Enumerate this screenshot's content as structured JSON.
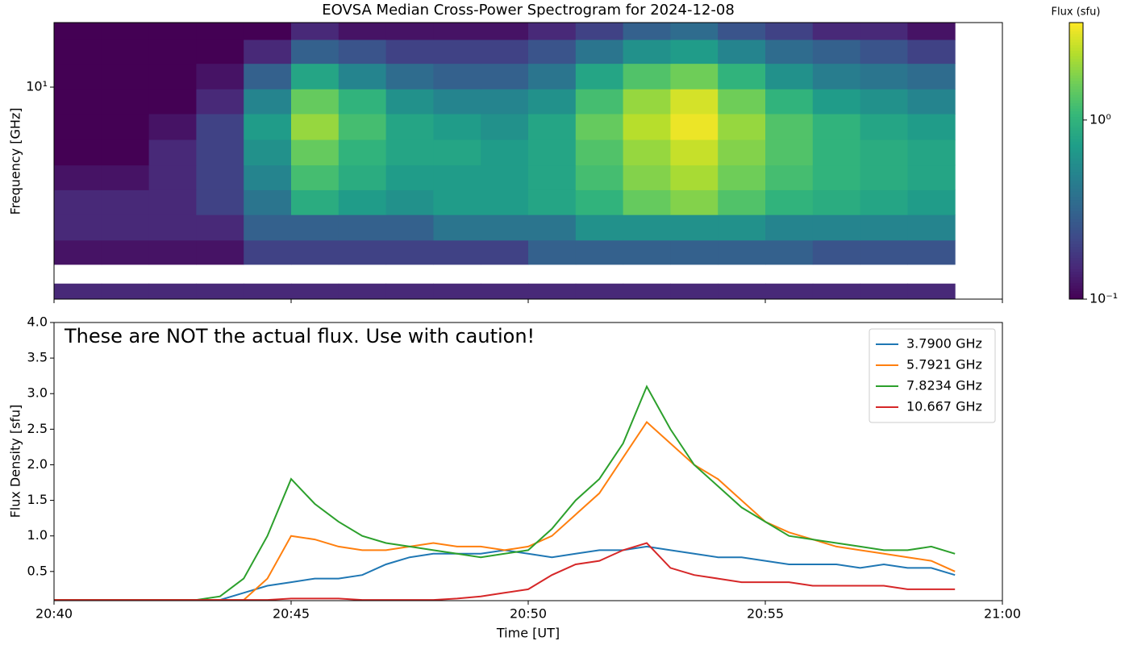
{
  "chart_data": [
    {
      "type": "heatmap",
      "title": "EOVSA Median Cross-Power Spectrogram for 2024-12-08",
      "y_label": "Frequency [GHz]",
      "log_y": true,
      "colormap": "viridis",
      "log_color": true,
      "colorbar_label": "Flux (sfu)",
      "clim": [
        0.1,
        3.5
      ],
      "colorbar_ticks": [
        {
          "value": 0.1,
          "label": "10⁻¹"
        },
        {
          "value": 1,
          "label": "10⁰"
        }
      ],
      "ylim": [
        1.45,
        18
      ],
      "yticks": [
        {
          "value": 10,
          "label": "10¹"
        }
      ],
      "x": [
        0.5,
        1.5,
        2.5,
        3.5,
        4.5,
        5.5,
        6.5,
        7.5,
        8.5,
        9.5,
        10.5,
        11.5,
        12.5,
        13.5,
        14.5,
        15.5,
        16.5,
        17.5,
        18.5
      ],
      "y": [
        1.55,
        1.8,
        2.2,
        2.8,
        3.5,
        4.4,
        5.5,
        7.0,
        8.8,
        11,
        14,
        17
      ],
      "z": [
        [
          0.15,
          0.15,
          0.15,
          0.15,
          0.15,
          0.15,
          0.15,
          0.15,
          0.15,
          0.15,
          0.15,
          0.15,
          0.15,
          0.15,
          0.15,
          0.15,
          0.15,
          0.15,
          0.15
        ],
        [
          null,
          null,
          null,
          null,
          null,
          null,
          null,
          null,
          null,
          null,
          null,
          null,
          null,
          null,
          null,
          null,
          null,
          null,
          null
        ],
        [
          0.12,
          0.12,
          0.12,
          0.12,
          0.2,
          0.2,
          0.2,
          0.2,
          0.2,
          0.2,
          0.3,
          0.3,
          0.3,
          0.3,
          0.3,
          0.3,
          0.25,
          0.25,
          0.25
        ],
        [
          0.15,
          0.15,
          0.15,
          0.15,
          0.3,
          0.3,
          0.3,
          0.3,
          0.4,
          0.4,
          0.4,
          0.6,
          0.6,
          0.6,
          0.6,
          0.5,
          0.5,
          0.5,
          0.5
        ],
        [
          0.15,
          0.15,
          0.15,
          0.2,
          0.4,
          0.9,
          0.7,
          0.6,
          0.7,
          0.7,
          0.8,
          1.0,
          1.5,
          1.8,
          1.3,
          1.0,
          0.9,
          0.8,
          0.7
        ],
        [
          0.12,
          0.12,
          0.15,
          0.2,
          0.5,
          1.2,
          0.9,
          0.7,
          0.7,
          0.7,
          0.8,
          1.2,
          1.8,
          2.2,
          1.6,
          1.2,
          1.0,
          0.9,
          0.8
        ],
        [
          0.1,
          0.1,
          0.15,
          0.2,
          0.6,
          1.5,
          1.0,
          0.8,
          0.8,
          0.7,
          0.8,
          1.3,
          2.0,
          2.6,
          1.8,
          1.3,
          1.0,
          0.9,
          0.8
        ],
        [
          0.1,
          0.1,
          0.12,
          0.2,
          0.7,
          2.0,
          1.2,
          0.8,
          0.7,
          0.6,
          0.8,
          1.5,
          2.4,
          3.2,
          2.0,
          1.3,
          1.0,
          0.8,
          0.7
        ],
        [
          0.1,
          0.1,
          0.1,
          0.15,
          0.5,
          1.5,
          1.0,
          0.6,
          0.5,
          0.5,
          0.6,
          1.2,
          2.0,
          2.8,
          1.6,
          1.0,
          0.7,
          0.6,
          0.5
        ],
        [
          0.1,
          0.1,
          0.1,
          0.12,
          0.3,
          0.8,
          0.5,
          0.35,
          0.3,
          0.3,
          0.4,
          0.8,
          1.3,
          1.6,
          1.0,
          0.6,
          0.45,
          0.4,
          0.35
        ],
        [
          0.1,
          0.1,
          0.1,
          0.1,
          0.15,
          0.3,
          0.25,
          0.2,
          0.2,
          0.2,
          0.25,
          0.4,
          0.6,
          0.7,
          0.5,
          0.35,
          0.3,
          0.25,
          0.2
        ],
        [
          0.1,
          0.1,
          0.1,
          0.1,
          0.1,
          0.15,
          0.12,
          0.12,
          0.12,
          0.12,
          0.15,
          0.2,
          0.3,
          0.35,
          0.25,
          0.2,
          0.15,
          0.15,
          0.12
        ]
      ]
    },
    {
      "type": "line",
      "x_label": "Time [UT]",
      "y_label": "Flux Density [sfu]",
      "annotation": "These are NOT the actual flux. Use with caution!",
      "legend": "upper right",
      "xlim": [
        0,
        20
      ],
      "xticks": [
        {
          "value": 0,
          "label": "20:40"
        },
        {
          "value": 5,
          "label": "20:45"
        },
        {
          "value": 10,
          "label": "20:50"
        },
        {
          "value": 15,
          "label": "20:55"
        },
        {
          "value": 20,
          "label": "21:00"
        }
      ],
      "ylim": [
        0.09,
        4.0
      ],
      "yticks": [
        0.5,
        {
          "value": 1,
          "label": "1.0"
        },
        1.5,
        {
          "value": 2,
          "label": "2.0"
        },
        2.5,
        {
          "value": 3,
          "label": "3.0"
        },
        3.5,
        {
          "value": 4,
          "label": "4.0"
        }
      ],
      "x": [
        0,
        0.5,
        1,
        1.5,
        2,
        2.5,
        3,
        3.5,
        4,
        4.5,
        5,
        5.5,
        6,
        6.5,
        7,
        7.5,
        8,
        8.5,
        9,
        9.5,
        10,
        10.5,
        11,
        11.5,
        12,
        12.5,
        13,
        13.5,
        14,
        14.5,
        15,
        15.5,
        16,
        16.5,
        17,
        17.5,
        18,
        18.5,
        19
      ],
      "series": [
        {
          "name": "3.7900 GHz",
          "color": "#1f77b4",
          "values": [
            0.1,
            0.1,
            0.1,
            0.1,
            0.1,
            0.1,
            0.1,
            0.1,
            0.2,
            0.3,
            0.35,
            0.4,
            0.4,
            0.45,
            0.6,
            0.7,
            0.75,
            0.75,
            0.75,
            0.8,
            0.75,
            0.7,
            0.75,
            0.8,
            0.8,
            0.85,
            0.8,
            0.75,
            0.7,
            0.7,
            0.65,
            0.6,
            0.6,
            0.6,
            0.55,
            0.6,
            0.55,
            0.55,
            0.45
          ]
        },
        {
          "name": "5.7921 GHz",
          "color": "#ff7f0e",
          "values": [
            0.1,
            0.1,
            0.1,
            0.1,
            0.1,
            0.1,
            0.1,
            0.1,
            0.1,
            0.4,
            1.0,
            0.95,
            0.85,
            0.8,
            0.8,
            0.85,
            0.9,
            0.85,
            0.85,
            0.8,
            0.85,
            1.0,
            1.3,
            1.6,
            2.1,
            2.6,
            2.3,
            2.0,
            1.8,
            1.5,
            1.2,
            1.05,
            0.95,
            0.85,
            0.8,
            0.75,
            0.7,
            0.65,
            0.5
          ]
        },
        {
          "name": "7.8234 GHz",
          "color": "#2ca02c",
          "values": [
            0.1,
            0.1,
            0.1,
            0.1,
            0.1,
            0.1,
            0.1,
            0.15,
            0.4,
            1.0,
            1.8,
            1.45,
            1.2,
            1.0,
            0.9,
            0.85,
            0.8,
            0.75,
            0.7,
            0.75,
            0.8,
            1.1,
            1.5,
            1.8,
            2.3,
            3.1,
            2.5,
            2.0,
            1.7,
            1.4,
            1.2,
            1.0,
            0.95,
            0.9,
            0.85,
            0.8,
            0.8,
            0.85,
            0.75
          ]
        },
        {
          "name": "10.667 GHz",
          "color": "#d62728",
          "values": [
            0.1,
            0.1,
            0.1,
            0.1,
            0.1,
            0.1,
            0.1,
            0.1,
            0.1,
            0.1,
            0.12,
            0.12,
            0.12,
            0.1,
            0.1,
            0.1,
            0.1,
            0.12,
            0.15,
            0.2,
            0.25,
            0.45,
            0.6,
            0.65,
            0.8,
            0.9,
            0.55,
            0.45,
            0.4,
            0.35,
            0.35,
            0.35,
            0.3,
            0.3,
            0.3,
            0.3,
            0.25,
            0.25,
            0.25
          ]
        }
      ]
    }
  ]
}
